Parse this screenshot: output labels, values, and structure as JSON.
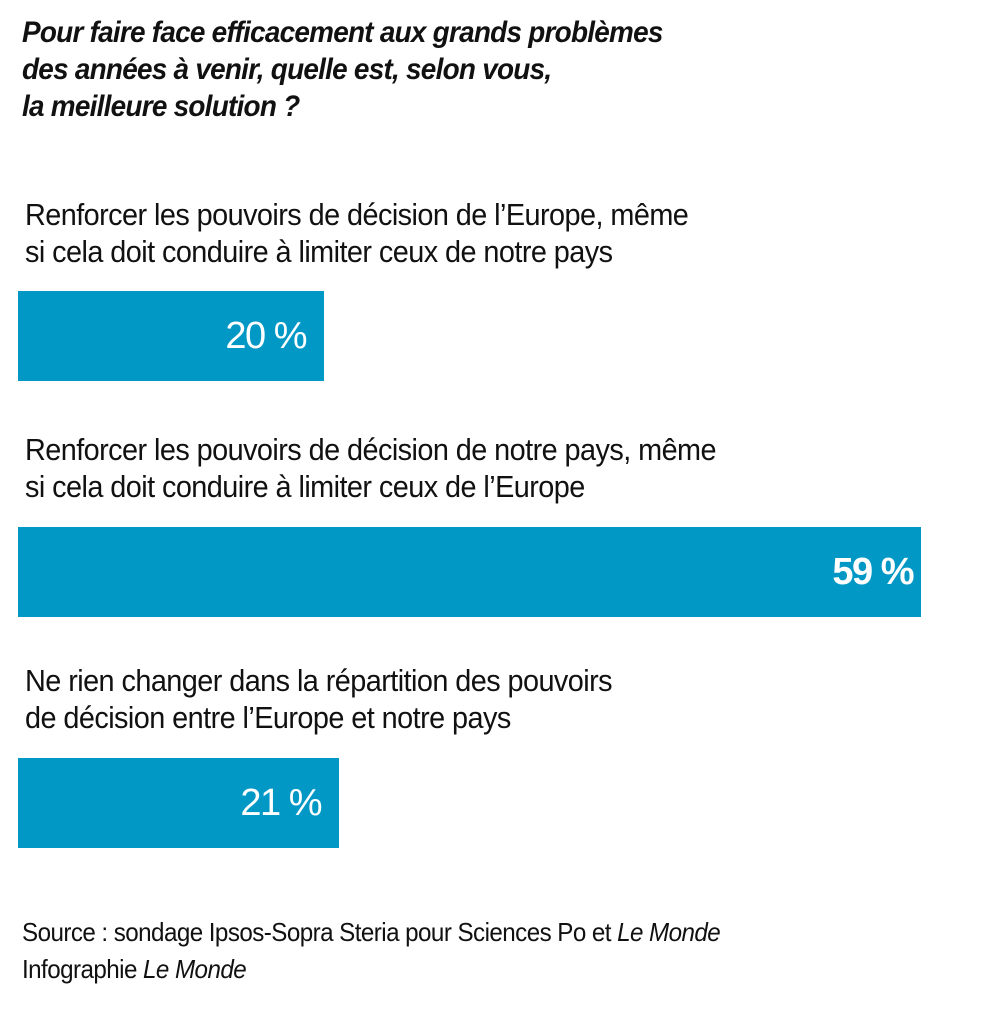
{
  "chart_data": {
    "type": "bar",
    "orientation": "horizontal",
    "title": "Pour faire face efficacement aux grands problèmes des années à venir, quelle est, selon vous, la meilleure solution ?",
    "title_lines": [
      "Pour faire face efficacement aux grands problèmes",
      "des années à venir, quelle est, selon vous,",
      "la meilleure solution ?"
    ],
    "categories": [
      "Renforcer les pouvoirs de décision de l’Europe, même si cela doit conduire à limiter ceux de notre pays",
      "Renforcer les pouvoirs de décision de notre pays, même si cela doit conduire à limiter ceux de l’Europe",
      "Ne rien changer dans la répartition des pouvoirs de décision entre l’Europe et notre pays"
    ],
    "values": [
      20,
      59,
      21
    ],
    "unit": "%",
    "bars": [
      {
        "label_lines": [
          "Renforcer les pouvoirs de décision de l’Europe, même",
          "si cela doit conduire à limiter ceux de notre pays"
        ],
        "value": 20,
        "value_label": "20 %",
        "highlight": false
      },
      {
        "label_lines": [
          "Renforcer les pouvoirs de décision de notre pays, même",
          "si cela doit conduire à limiter ceux de l’Europe"
        ],
        "value": 59,
        "value_label": "59 %",
        "highlight": true
      },
      {
        "label_lines": [
          "Ne rien changer dans la répartition des pouvoirs",
          "de décision entre l’Europe et notre pays"
        ],
        "value": 21,
        "value_label": "21 %",
        "highlight": false
      }
    ],
    "xlim": [
      0,
      60
    ],
    "bar_color": "#0298c6",
    "value_label_color": "#ffffff",
    "grid": false,
    "legend": "none",
    "xlabel": "",
    "ylabel": ""
  },
  "footer": {
    "source_prefix": "Source : sondage Ipsos-Sopra Steria pour Sciences Po et ",
    "source_italic": "Le Monde",
    "credit_prefix": "Infographie ",
    "credit_italic": "Le Monde"
  }
}
